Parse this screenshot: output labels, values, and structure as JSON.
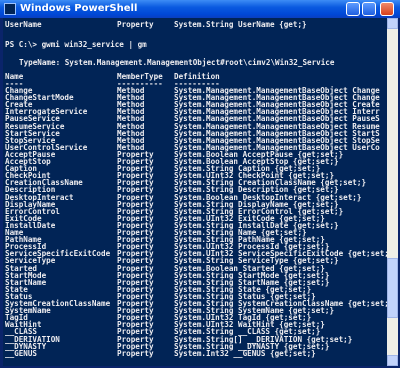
{
  "window": {
    "title": "Windows PowerShell"
  },
  "console": {
    "previous_row": {
      "name": "UserName",
      "type": "Property",
      "definition": "System.String UserName {get;}"
    },
    "prompt": "PS C:\\> gwmi win32_service | gm",
    "typename": "TypeName: System.Management.ManagementObject#root\\cimv2\\Win32_Service",
    "columns": [
      "Name",
      "MemberType",
      "Definition"
    ],
    "underlines": [
      "----",
      "----------",
      "----------"
    ],
    "members": [
      {
        "name": "Change",
        "type": "Method",
        "definition": "System.Management.ManagementBaseObject Change"
      },
      {
        "name": "ChangeStartMode",
        "type": "Method",
        "definition": "System.Management.ManagementBaseObject Change"
      },
      {
        "name": "Create",
        "type": "Method",
        "definition": "System.Management.ManagementBaseObject Create"
      },
      {
        "name": "InterrogateService",
        "type": "Method",
        "definition": "System.Management.ManagementBaseObject Interr"
      },
      {
        "name": "PauseService",
        "type": "Method",
        "definition": "System.Management.ManagementBaseObject PauseS"
      },
      {
        "name": "ResumeService",
        "type": "Method",
        "definition": "System.Management.ManagementBaseObject Resume"
      },
      {
        "name": "StartService",
        "type": "Method",
        "definition": "System.Management.ManagementBaseObject StartS"
      },
      {
        "name": "StopService",
        "type": "Method",
        "definition": "System.Management.ManagementBaseObject StopSe"
      },
      {
        "name": "UserControlService",
        "type": "Method",
        "definition": "System.Management.ManagementBaseObject UserCo"
      },
      {
        "name": "AcceptPause",
        "type": "Property",
        "definition": "System.Boolean AcceptPause {get;set;}"
      },
      {
        "name": "AcceptStop",
        "type": "Property",
        "definition": "System.Boolean AcceptStop {get;set;}"
      },
      {
        "name": "Caption",
        "type": "Property",
        "definition": "System.String Caption {get;set;}"
      },
      {
        "name": "CheckPoint",
        "type": "Property",
        "definition": "System.UInt32 CheckPoint {get;set;}"
      },
      {
        "name": "CreationClassName",
        "type": "Property",
        "definition": "System.String CreationClassName {get;set;}"
      },
      {
        "name": "Description",
        "type": "Property",
        "definition": "System.String Description {get;set;}"
      },
      {
        "name": "DesktopInteract",
        "type": "Property",
        "definition": "System.Boolean DesktopInteract {get;set;}"
      },
      {
        "name": "DisplayName",
        "type": "Property",
        "definition": "System.String DisplayName {get;set;}"
      },
      {
        "name": "ErrorControl",
        "type": "Property",
        "definition": "System.String ErrorControl {get;set;}"
      },
      {
        "name": "ExitCode",
        "type": "Property",
        "definition": "System.UInt32 ExitCode {get;set;}"
      },
      {
        "name": "InstallDate",
        "type": "Property",
        "definition": "System.String InstallDate {get;set;}"
      },
      {
        "name": "Name",
        "type": "Property",
        "definition": "System.String Name {get;set;}"
      },
      {
        "name": "PathName",
        "type": "Property",
        "definition": "System.String PathName {get;set;}"
      },
      {
        "name": "ProcessId",
        "type": "Property",
        "definition": "System.UInt32 ProcessId {get;set;}"
      },
      {
        "name": "ServiceSpecificExitCode",
        "type": "Property",
        "definition": "System.UInt32 ServiceSpecificExitCode {get;set;}"
      },
      {
        "name": "ServiceType",
        "type": "Property",
        "definition": "System.String ServiceType {get;set;}"
      },
      {
        "name": "Started",
        "type": "Property",
        "definition": "System.Boolean Started {get;set;}"
      },
      {
        "name": "StartMode",
        "type": "Property",
        "definition": "System.String StartMode {get;set;}"
      },
      {
        "name": "StartName",
        "type": "Property",
        "definition": "System.String StartName {get;set;}"
      },
      {
        "name": "State",
        "type": "Property",
        "definition": "System.String State {get;set;}"
      },
      {
        "name": "Status",
        "type": "Property",
        "definition": "System.String Status {get;set;}"
      },
      {
        "name": "SystemCreationClassName",
        "type": "Property",
        "definition": "System.String SystemCreationClassName {get;set;}"
      },
      {
        "name": "SystemName",
        "type": "Property",
        "definition": "System.String SystemName {get;set;}"
      },
      {
        "name": "TagId",
        "type": "Property",
        "definition": "System.UInt32 TagId {get;set;}"
      },
      {
        "name": "WaitHint",
        "type": "Property",
        "definition": "System.UInt32 WaitHint {get;set;}"
      },
      {
        "name": "__CLASS",
        "type": "Property",
        "definition": "System.String __CLASS {get;set;}"
      },
      {
        "name": "__DERIVATION",
        "type": "Property",
        "definition": "System.String[] __DERIVATION {get;set;}"
      },
      {
        "name": "__DYNASTY",
        "type": "Property",
        "definition": "System.String __DYNASTY {get;set;}"
      },
      {
        "name": "__GENUS",
        "type": "Property",
        "definition": "System.Int32 __GENUS {get;set;}"
      }
    ]
  }
}
